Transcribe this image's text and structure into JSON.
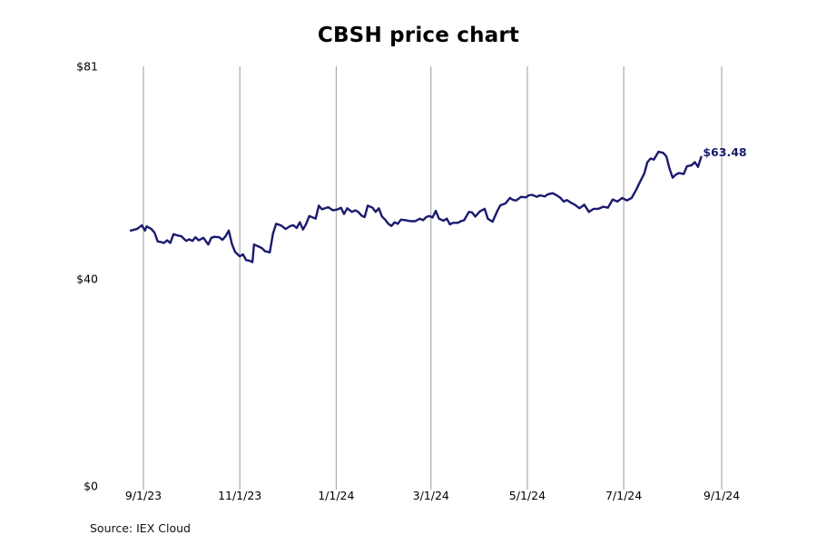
{
  "chart_data": {
    "type": "line",
    "title": "CBSH price chart",
    "ticker": "CBSH",
    "source": "Source: IEX Cloud",
    "line_color": "#1a1a6e",
    "gridline_color": "#999999",
    "last_value_label": "$63.48",
    "ylim": [
      0,
      81
    ],
    "yticks": [
      {
        "value": 0,
        "label": "$0"
      },
      {
        "value": 40,
        "label": "$40"
      },
      {
        "value": 81,
        "label": "$81"
      }
    ],
    "xticks": [
      {
        "date": "2023-09-01",
        "label": "9/1/23"
      },
      {
        "date": "2023-11-01",
        "label": "11/1/23"
      },
      {
        "date": "2024-01-01",
        "label": "1/1/24"
      },
      {
        "date": "2024-03-01",
        "label": "3/1/24"
      },
      {
        "date": "2024-05-01",
        "label": "5/1/24"
      },
      {
        "date": "2024-07-01",
        "label": "7/1/24"
      },
      {
        "date": "2024-09-01",
        "label": "9/1/24"
      }
    ],
    "grid": "vertical lines at x ticks",
    "series": [
      {
        "points": [
          [
            "2023-08-24",
            49.3
          ],
          [
            "2023-08-28",
            49.6
          ],
          [
            "2023-08-31",
            50.3
          ],
          [
            "2023-09-02",
            49.3
          ],
          [
            "2023-09-03",
            50.1
          ],
          [
            "2023-09-06",
            49.6
          ],
          [
            "2023-09-08",
            48.9
          ],
          [
            "2023-09-10",
            47.2
          ],
          [
            "2023-09-12",
            47.1
          ],
          [
            "2023-09-14",
            46.9
          ],
          [
            "2023-09-16",
            47.4
          ],
          [
            "2023-09-18",
            46.9
          ],
          [
            "2023-09-20",
            48.6
          ],
          [
            "2023-09-22",
            48.4
          ],
          [
            "2023-09-25",
            48.2
          ],
          [
            "2023-09-28",
            47.3
          ],
          [
            "2023-09-30",
            47.6
          ],
          [
            "2023-10-02",
            47.3
          ],
          [
            "2023-10-04",
            48.0
          ],
          [
            "2023-10-06",
            47.4
          ],
          [
            "2023-10-09",
            47.9
          ],
          [
            "2023-10-12",
            46.6
          ],
          [
            "2023-10-14",
            47.9
          ],
          [
            "2023-10-16",
            48.1
          ],
          [
            "2023-10-19",
            48.0
          ],
          [
            "2023-10-21",
            47.5
          ],
          [
            "2023-10-23",
            48.2
          ],
          [
            "2023-10-25",
            49.3
          ],
          [
            "2023-10-27",
            46.7
          ],
          [
            "2023-10-29",
            45.2
          ],
          [
            "2023-11-01",
            44.3
          ],
          [
            "2023-11-03",
            44.7
          ],
          [
            "2023-11-05",
            43.6
          ],
          [
            "2023-11-07",
            43.5
          ],
          [
            "2023-11-09",
            43.2
          ],
          [
            "2023-11-10",
            46.6
          ],
          [
            "2023-11-13",
            46.2
          ],
          [
            "2023-11-15",
            45.9
          ],
          [
            "2023-11-17",
            45.3
          ],
          [
            "2023-11-20",
            45.1
          ],
          [
            "2023-11-22",
            48.7
          ],
          [
            "2023-11-24",
            50.6
          ],
          [
            "2023-11-27",
            50.3
          ],
          [
            "2023-11-30",
            49.6
          ],
          [
            "2023-12-03",
            50.2
          ],
          [
            "2023-12-05",
            50.3
          ],
          [
            "2023-12-07",
            49.8
          ],
          [
            "2023-12-09",
            50.9
          ],
          [
            "2023-12-11",
            49.5
          ],
          [
            "2023-12-13",
            50.6
          ],
          [
            "2023-12-15",
            52.1
          ],
          [
            "2023-12-19",
            51.6
          ],
          [
            "2023-12-21",
            54.1
          ],
          [
            "2023-12-23",
            53.4
          ],
          [
            "2023-12-27",
            53.8
          ],
          [
            "2023-12-30",
            53.2
          ],
          [
            "2024-01-02",
            53.4
          ],
          [
            "2024-01-04",
            53.7
          ],
          [
            "2024-01-06",
            52.5
          ],
          [
            "2024-01-08",
            53.6
          ],
          [
            "2024-01-11",
            52.9
          ],
          [
            "2024-01-13",
            53.2
          ],
          [
            "2024-01-15",
            52.9
          ],
          [
            "2024-01-17",
            52.2
          ],
          [
            "2024-01-19",
            51.9
          ],
          [
            "2024-01-21",
            54.1
          ],
          [
            "2024-01-24",
            53.7
          ],
          [
            "2024-01-26",
            52.9
          ],
          [
            "2024-01-28",
            53.6
          ],
          [
            "2024-01-30",
            52.0
          ],
          [
            "2024-02-01",
            51.4
          ],
          [
            "2024-02-03",
            50.6
          ],
          [
            "2024-02-05",
            50.2
          ],
          [
            "2024-02-07",
            50.9
          ],
          [
            "2024-02-09",
            50.6
          ],
          [
            "2024-02-11",
            51.4
          ],
          [
            "2024-02-14",
            51.3
          ],
          [
            "2024-02-17",
            51.1
          ],
          [
            "2024-02-20",
            51.1
          ],
          [
            "2024-02-23",
            51.6
          ],
          [
            "2024-02-25",
            51.3
          ],
          [
            "2024-02-27",
            51.9
          ],
          [
            "2024-02-29",
            52.1
          ],
          [
            "2024-03-02",
            51.8
          ],
          [
            "2024-03-04",
            53.1
          ],
          [
            "2024-03-06",
            51.6
          ],
          [
            "2024-03-09",
            51.2
          ],
          [
            "2024-03-11",
            51.6
          ],
          [
            "2024-03-13",
            50.5
          ],
          [
            "2024-03-15",
            50.8
          ],
          [
            "2024-03-18",
            50.8
          ],
          [
            "2024-03-20",
            51.1
          ],
          [
            "2024-03-22",
            51.3
          ],
          [
            "2024-03-25",
            52.9
          ],
          [
            "2024-03-27",
            52.8
          ],
          [
            "2024-03-29",
            52.0
          ],
          [
            "2024-04-01",
            53.0
          ],
          [
            "2024-04-04",
            53.5
          ],
          [
            "2024-04-06",
            51.6
          ],
          [
            "2024-04-09",
            51.0
          ],
          [
            "2024-04-12",
            53.1
          ],
          [
            "2024-04-14",
            54.2
          ],
          [
            "2024-04-17",
            54.5
          ],
          [
            "2024-04-20",
            55.6
          ],
          [
            "2024-04-22",
            55.2
          ],
          [
            "2024-04-24",
            55.1
          ],
          [
            "2024-04-27",
            55.8
          ],
          [
            "2024-04-30",
            55.7
          ],
          [
            "2024-05-02",
            56.1
          ],
          [
            "2024-05-04",
            56.2
          ],
          [
            "2024-05-07",
            55.8
          ],
          [
            "2024-05-09",
            56.1
          ],
          [
            "2024-05-12",
            55.9
          ],
          [
            "2024-05-14",
            56.3
          ],
          [
            "2024-05-17",
            56.5
          ],
          [
            "2024-05-19",
            56.2
          ],
          [
            "2024-05-22",
            55.6
          ],
          [
            "2024-05-24",
            54.9
          ],
          [
            "2024-05-26",
            55.2
          ],
          [
            "2024-05-29",
            54.6
          ],
          [
            "2024-05-31",
            54.3
          ],
          [
            "2024-06-03",
            53.6
          ],
          [
            "2024-06-06",
            54.3
          ],
          [
            "2024-06-09",
            52.9
          ],
          [
            "2024-06-12",
            53.5
          ],
          [
            "2024-06-15",
            53.5
          ],
          [
            "2024-06-18",
            53.9
          ],
          [
            "2024-06-21",
            53.7
          ],
          [
            "2024-06-24",
            55.3
          ],
          [
            "2024-06-27",
            54.9
          ],
          [
            "2024-06-30",
            55.6
          ],
          [
            "2024-07-03",
            55.1
          ],
          [
            "2024-07-06",
            55.6
          ],
          [
            "2024-07-09",
            57.2
          ],
          [
            "2024-07-11",
            58.5
          ],
          [
            "2024-07-14",
            60.3
          ],
          [
            "2024-07-16",
            62.5
          ],
          [
            "2024-07-18",
            63.2
          ],
          [
            "2024-07-20",
            63.0
          ],
          [
            "2024-07-23",
            64.5
          ],
          [
            "2024-07-26",
            64.3
          ],
          [
            "2024-07-28",
            63.6
          ],
          [
            "2024-07-30",
            61.2
          ],
          [
            "2024-08-01",
            59.5
          ],
          [
            "2024-08-03",
            60.1
          ],
          [
            "2024-08-05",
            60.4
          ],
          [
            "2024-08-08",
            60.2
          ],
          [
            "2024-08-10",
            61.7
          ],
          [
            "2024-08-13",
            61.9
          ],
          [
            "2024-08-15",
            62.5
          ],
          [
            "2024-08-17",
            61.6
          ],
          [
            "2024-08-19",
            63.48
          ]
        ]
      }
    ]
  }
}
